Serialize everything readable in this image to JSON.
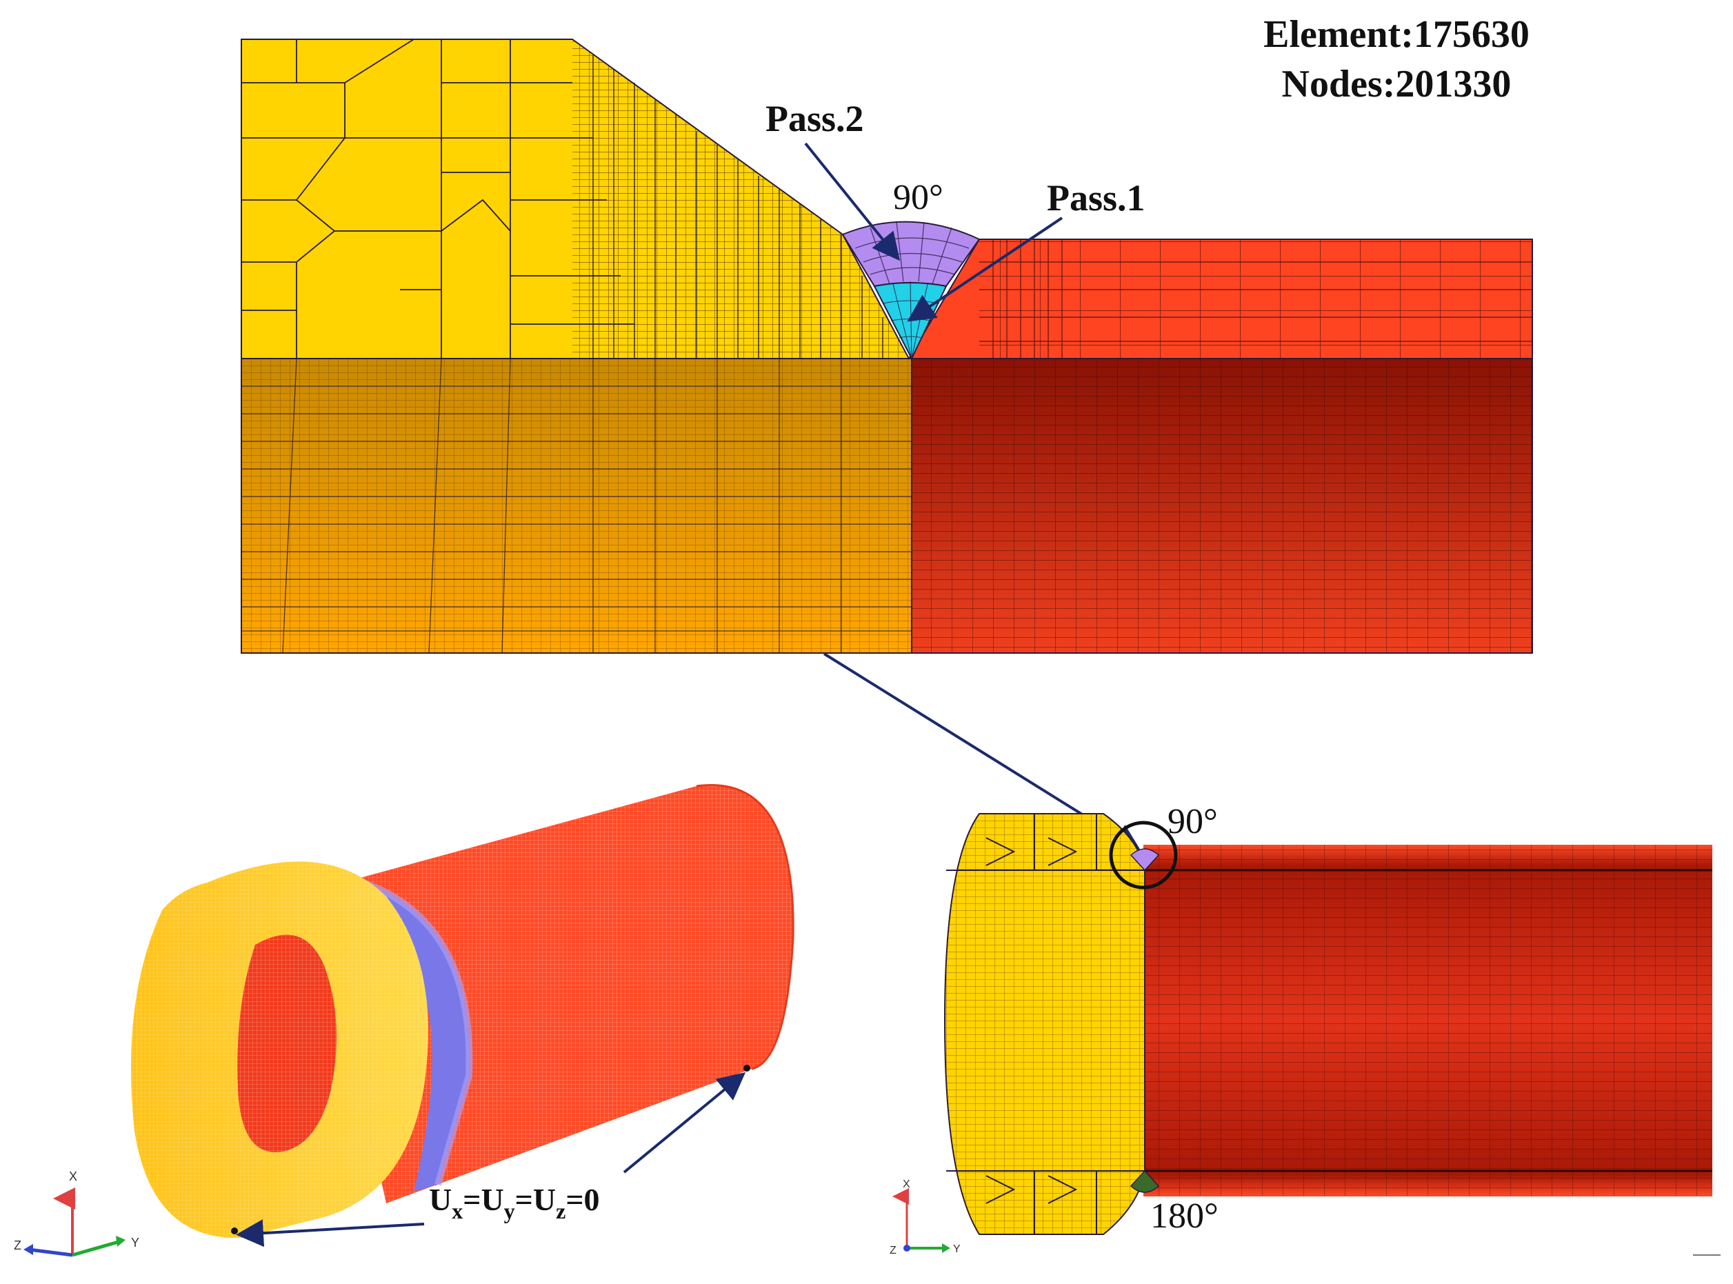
{
  "stats": {
    "elements": "Element:175630",
    "nodes": "Nodes:201330"
  },
  "labels": {
    "pass2": "Pass.2",
    "pass1": "Pass.1",
    "angle_top": "90°",
    "angle_right_top": "90°",
    "angle_right_bottom": "180°",
    "bc_u": "U",
    "bc_x": "x",
    "bc_eq1": "=U",
    "bc_y": "y",
    "bc_eq2": "=U",
    "bc_z": "z",
    "bc_zero": "=0"
  },
  "axes": {
    "x": "X",
    "y": "Y",
    "z": "Z"
  },
  "colors": {
    "flange_yellow": "#FFD400",
    "flange_shadow": "#E8A800",
    "pipe_red": "#FF4422",
    "pipe_dark": "#B01A08",
    "weld_pass2": "#B48CF0",
    "weld_pass1": "#22D0E8",
    "arrow_navy": "#1A2A6C",
    "mesh_line": "#2A1A3A"
  }
}
